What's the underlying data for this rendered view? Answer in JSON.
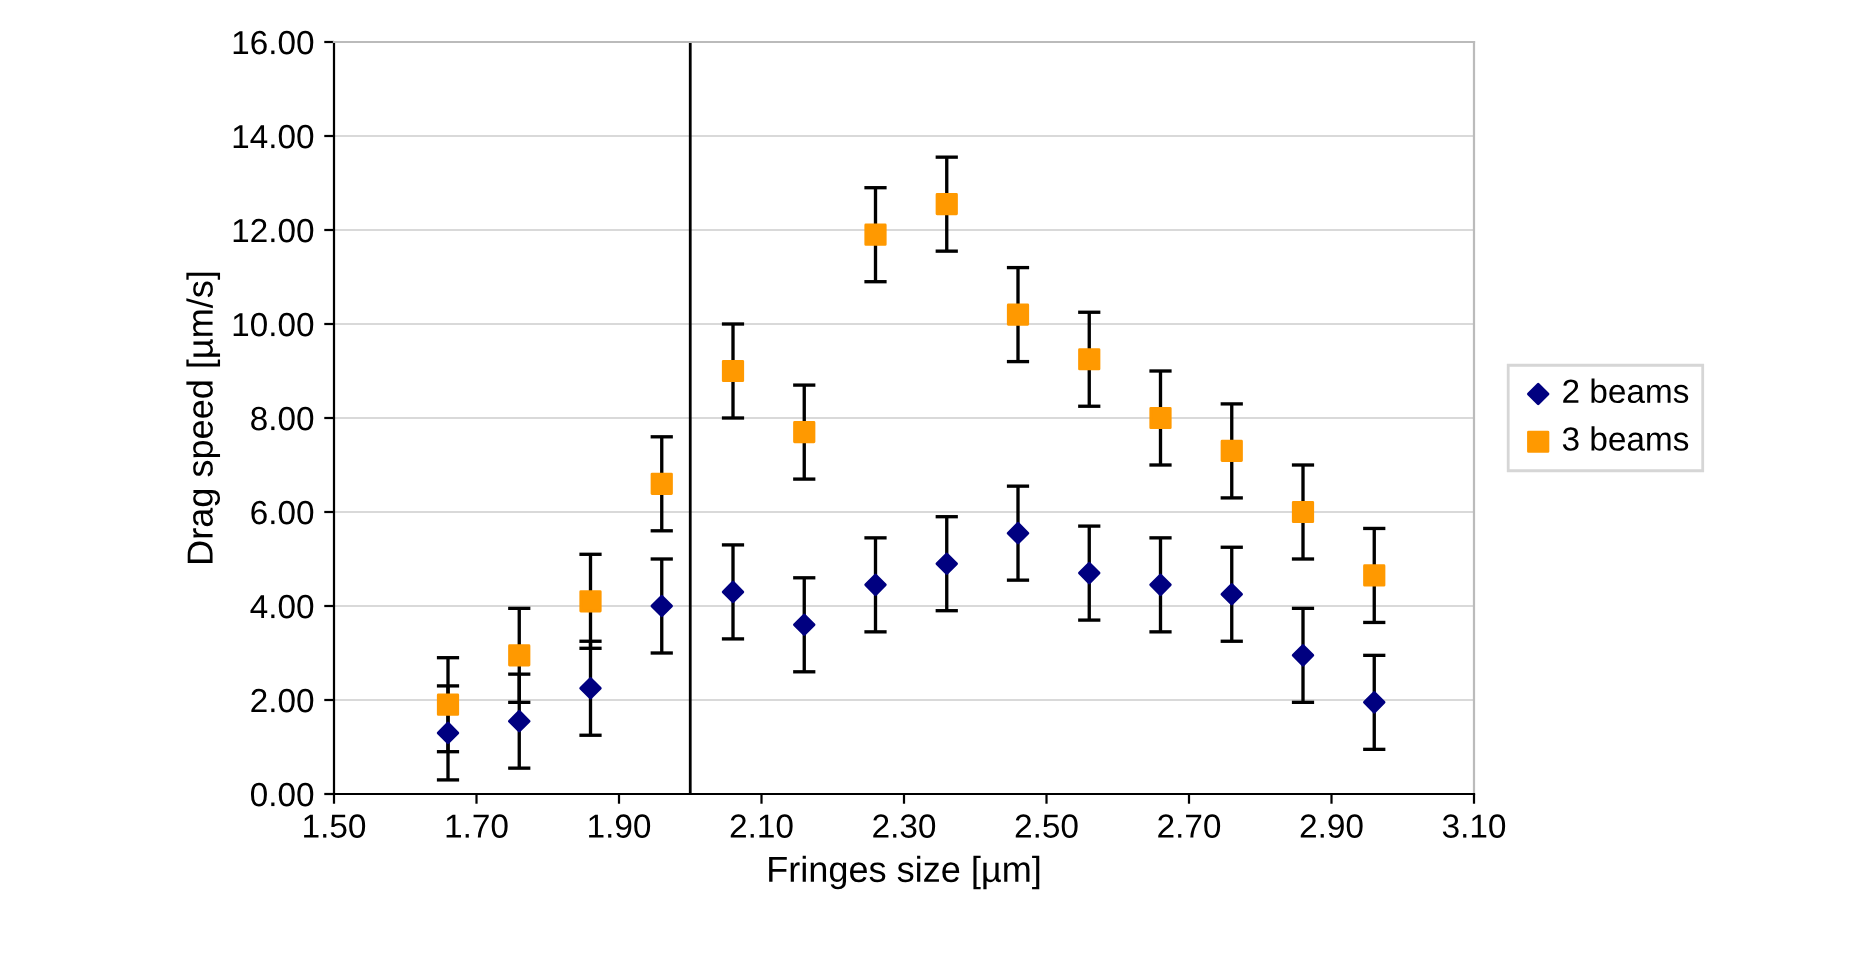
{
  "chart_data": {
    "type": "scatter",
    "xlabel": "Fringes size [µm]",
    "ylabel": "Drag speed [µm/s]",
    "x": [
      1.66,
      1.76,
      1.86,
      1.96,
      2.06,
      2.16,
      2.26,
      2.36,
      2.46,
      2.56,
      2.66,
      2.76,
      2.86,
      2.96
    ],
    "series": [
      {
        "name": "2 beams",
        "color": "#000080",
        "marker": "diamond",
        "values": [
          1.3,
          1.55,
          2.25,
          4.0,
          4.3,
          3.6,
          4.45,
          4.9,
          5.55,
          4.7,
          4.45,
          4.25,
          2.95,
          1.95
        ],
        "errors": [
          1,
          1,
          1,
          1,
          1,
          1,
          1,
          1,
          1,
          1,
          1,
          1,
          1,
          1
        ]
      },
      {
        "name": "3 beams",
        "color": "#ff9900",
        "marker": "square",
        "values": [
          1.9,
          2.95,
          4.1,
          6.6,
          9.0,
          7.7,
          11.9,
          12.55,
          10.2,
          9.25,
          8.0,
          7.3,
          6.0,
          4.65
        ],
        "errors": [
          1,
          1,
          1,
          1,
          1,
          1,
          1,
          1,
          1,
          1,
          1,
          1,
          1,
          1
        ]
      }
    ],
    "xlim": [
      1.5,
      3.1
    ],
    "xticks": [
      {
        "value": 1.5,
        "label": "1.50"
      },
      {
        "value": 1.7,
        "label": "1.70"
      },
      {
        "value": 1.9,
        "label": "1.90"
      },
      {
        "value": 2.1,
        "label": "2.10"
      },
      {
        "value": 2.3,
        "label": "2.30"
      },
      {
        "value": 2.5,
        "label": "2.50"
      },
      {
        "value": 2.7,
        "label": "2.70"
      },
      {
        "value": 2.9,
        "label": "2.90"
      },
      {
        "value": 3.1,
        "label": "3.10"
      }
    ],
    "ylim": [
      0,
      16
    ],
    "yticks": [
      {
        "value": 0,
        "label": "0.00"
      },
      {
        "value": 2,
        "label": "2.00"
      },
      {
        "value": 4,
        "label": "4.00"
      },
      {
        "value": 6,
        "label": "6.00"
      },
      {
        "value": 8,
        "label": "8.00"
      },
      {
        "value": 10,
        "label": "10.00"
      },
      {
        "value": 12,
        "label": "12.00"
      },
      {
        "value": 14,
        "label": "14.00"
      },
      {
        "value": 16,
        "label": "16.00"
      }
    ],
    "ref_lines": [
      {
        "axis": "x",
        "value": 2.0,
        "color": "#000000"
      }
    ],
    "grid": "y",
    "legend": "right"
  }
}
